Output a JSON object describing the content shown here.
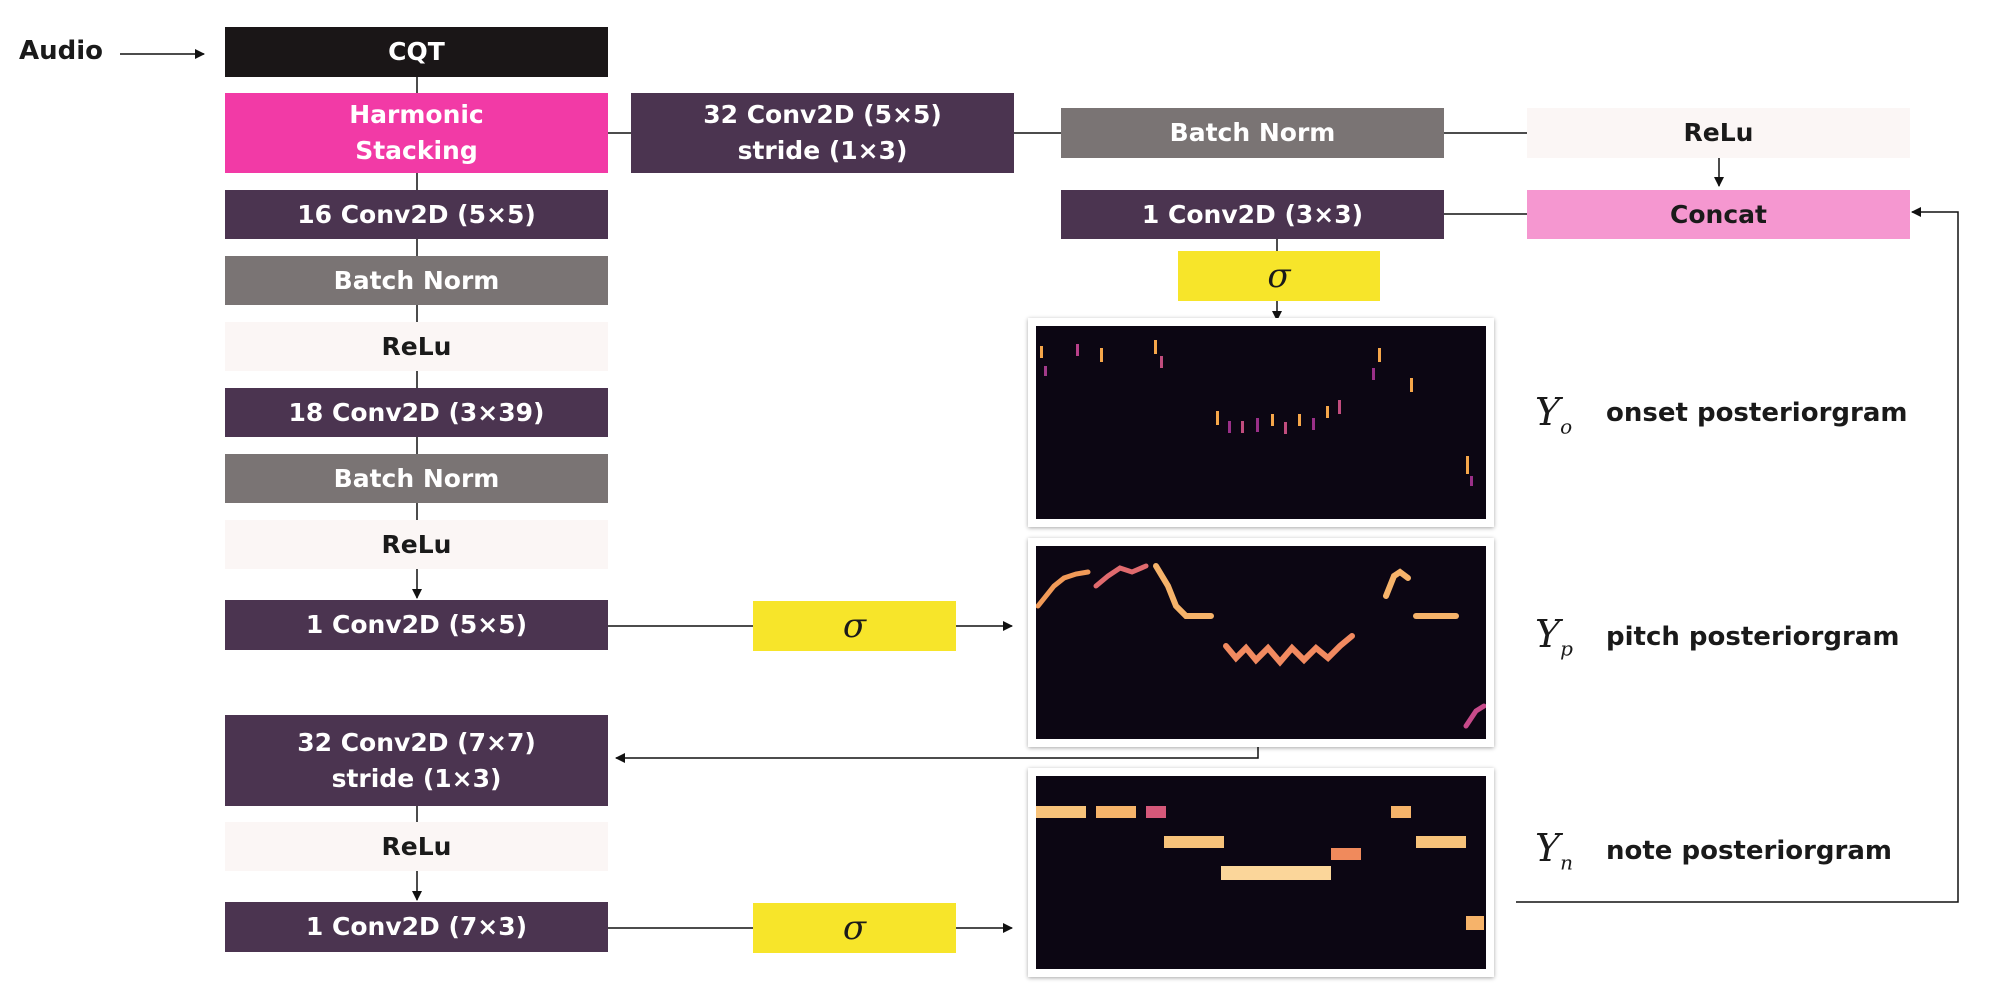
{
  "input_label": "Audio",
  "blocks": {
    "cqt": "CQT",
    "harmonic_stacking": "Harmonic\nStacking",
    "conv32_5x5": "32 Conv2D (5×5)\nstride (1×3)",
    "batch_norm_top": "Batch Norm",
    "relu_top": "ReLu",
    "concat": "Concat",
    "conv1_3x3": "1 Conv2D (3×3)",
    "sigma_onset": "σ",
    "conv16_5x5": "16 Conv2D (5×5)",
    "batch_norm_1": "Batch Norm",
    "relu_1": "ReLu",
    "conv18_3x39": "18 Conv2D (3×39)",
    "batch_norm_2": "Batch Norm",
    "relu_2": "ReLu",
    "conv1_5x5": "1 Conv2D (5×5)",
    "sigma_pitch": "σ",
    "conv32_7x7": "32 Conv2D (7×7)\nstride (1×3)",
    "relu_3": "ReLu",
    "conv1_7x3": "1 Conv2D (7×3)",
    "sigma_note": "σ"
  },
  "outputs": {
    "onset": {
      "symbol": "Y",
      "subscript": "o",
      "label": "onset posteriorgram"
    },
    "pitch": {
      "symbol": "Y",
      "subscript": "p",
      "label": "pitch posteriorgram"
    },
    "note": {
      "symbol": "Y",
      "subscript": "n",
      "label": "note posteriorgram"
    }
  },
  "colors": {
    "conv": "#4b3450",
    "batch_norm": "#7a7474",
    "relu": "#fbf6f5",
    "harmonic_stacking": "#f23aa6",
    "concat": "#f597d0",
    "sigmoid": "#f7e52a",
    "cqt": "#1a1617"
  }
}
